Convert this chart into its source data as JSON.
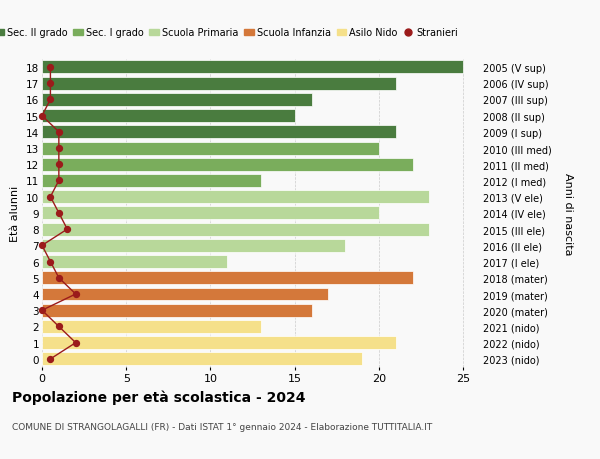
{
  "ages": [
    18,
    17,
    16,
    15,
    14,
    13,
    12,
    11,
    10,
    9,
    8,
    7,
    6,
    5,
    4,
    3,
    2,
    1,
    0
  ],
  "years": [
    "2005 (V sup)",
    "2006 (IV sup)",
    "2007 (III sup)",
    "2008 (II sup)",
    "2009 (I sup)",
    "2010 (III med)",
    "2011 (II med)",
    "2012 (I med)",
    "2013 (V ele)",
    "2014 (IV ele)",
    "2015 (III ele)",
    "2016 (II ele)",
    "2017 (I ele)",
    "2018 (mater)",
    "2019 (mater)",
    "2020 (mater)",
    "2021 (nido)",
    "2022 (nido)",
    "2023 (nido)"
  ],
  "bar_values": [
    25,
    21,
    16,
    15,
    21,
    20,
    22,
    13,
    23,
    20,
    23,
    18,
    11,
    22,
    17,
    16,
    13,
    21,
    19
  ],
  "stranieri_values": [
    0.5,
    0.5,
    0.5,
    0.0,
    1.0,
    1.0,
    1.0,
    1.0,
    0.5,
    1.0,
    1.5,
    0.0,
    0.5,
    1.0,
    2.0,
    0.0,
    1.0,
    2.0,
    0.5
  ],
  "bar_colors": [
    "#4a7c3f",
    "#4a7c3f",
    "#4a7c3f",
    "#4a7c3f",
    "#4a7c3f",
    "#7aad5c",
    "#7aad5c",
    "#7aad5c",
    "#b8d89a",
    "#b8d89a",
    "#b8d89a",
    "#b8d89a",
    "#b8d89a",
    "#d4783a",
    "#d4783a",
    "#d4783a",
    "#f5e08a",
    "#f5e08a",
    "#f5e08a"
  ],
  "legend_labels": [
    "Sec. II grado",
    "Sec. I grado",
    "Scuola Primaria",
    "Scuola Infanzia",
    "Asilo Nido",
    "Stranieri"
  ],
  "legend_colors": [
    "#4a7c3f",
    "#7aad5c",
    "#b8d89a",
    "#d4783a",
    "#f5e08a",
    "#9b1b1b"
  ],
  "stranieri_color": "#9b1b1b",
  "ylabel": "Età alunni",
  "right_label": "Anni di nascita",
  "title": "Popolazione per età scolastica - 2024",
  "subtitle": "COMUNE DI STRANGOLAGALLI (FR) - Dati ISTAT 1° gennaio 2024 - Elaborazione TUTTITALIA.IT",
  "xlim": [
    0,
    26
  ],
  "background_color": "#f9f9f9",
  "bar_height": 0.8,
  "grid_color": "#cccccc"
}
